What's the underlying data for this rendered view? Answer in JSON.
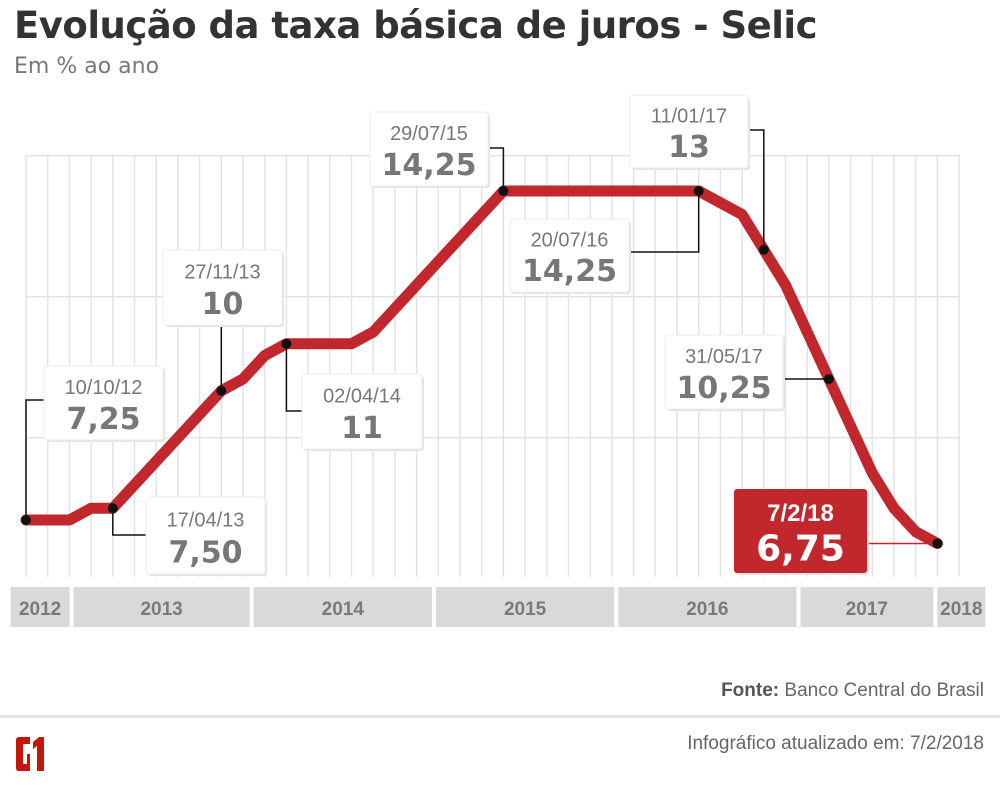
{
  "header": {
    "title": "Evolução da taxa básica de juros - Selic",
    "subtitle": "Em % ao ano"
  },
  "chart_data": {
    "type": "line",
    "title": "Evolução da taxa básica de juros - Selic",
    "ylabel": "Em % ao ano",
    "ylim": [
      6,
      15
    ],
    "y_gridlines": [
      6,
      9,
      12,
      15
    ],
    "grid": true,
    "x_description": "Copom meetings (one vertical gridline per meeting)",
    "x": [
      0,
      1,
      2,
      3,
      4,
      5,
      6,
      7,
      8,
      9,
      10,
      11,
      12,
      13,
      14,
      15,
      16,
      17,
      18,
      19,
      20,
      21,
      22,
      23,
      24,
      25,
      26,
      27,
      28,
      29,
      30,
      31,
      32,
      33,
      34,
      35,
      36,
      37,
      38,
      39,
      40,
      41,
      42
    ],
    "series": [
      {
        "values": [
          7.25,
          7.25,
          7.25,
          7.5,
          7.5,
          8,
          8.5,
          9,
          9.5,
          10,
          10.25,
          10.75,
          11,
          11,
          11,
          11,
          11.25,
          11.75,
          12.25,
          12.75,
          13.25,
          13.75,
          14.25,
          14.25,
          14.25,
          14.25,
          14.25,
          14.25,
          14.25,
          14.25,
          14.25,
          14.25,
          14,
          13.75,
          13,
          12.25,
          11.25,
          10.25,
          9.25,
          8.25,
          7.5,
          7,
          6.75
        ]
      }
    ],
    "x_years": [
      {
        "label": "2012",
        "from": -0.8,
        "to": 2.1
      },
      {
        "label": "2013",
        "from": 2.1,
        "to": 10.4
      },
      {
        "label": "2014",
        "from": 10.4,
        "to": 18.8
      },
      {
        "label": "2015",
        "from": 18.8,
        "to": 27.2
      },
      {
        "label": "2016",
        "from": 27.2,
        "to": 35.6
      },
      {
        "label": "2017",
        "from": 35.6,
        "to": 41.9
      },
      {
        "label": "2018",
        "from": 41.9,
        "to": 44.3
      }
    ],
    "annotations": [
      {
        "date": "10/10/12",
        "value": "7,25",
        "x": 0,
        "y": 7.25
      },
      {
        "date": "17/04/13",
        "value": "7,50",
        "x": 4,
        "y": 7.5
      },
      {
        "date": "27/11/13",
        "value": "10",
        "x": 9,
        "y": 10
      },
      {
        "date": "02/04/14",
        "value": "11",
        "x": 12,
        "y": 11
      },
      {
        "date": "29/07/15",
        "value": "14,25",
        "x": 22,
        "y": 14.25
      },
      {
        "date": "20/07/16",
        "value": "14,25",
        "x": 31,
        "y": 14.25
      },
      {
        "date": "11/01/17",
        "value": "13",
        "x": 34,
        "y": 13
      },
      {
        "date": "31/05/17",
        "value": "10,25",
        "x": 37,
        "y": 10.25
      },
      {
        "date": "7/2/18",
        "value": "6,75",
        "x": 42,
        "y": 6.75,
        "highlight": true
      }
    ],
    "colors": {
      "line": "#c1272d",
      "grid": "#e3e3e3",
      "axis_band": "#d9d9d9",
      "highlight_box": "#c1272d"
    }
  },
  "footer": {
    "source_label": "Fonte:",
    "source": "Banco Central do Brasil",
    "updated": "Infográfico atualizado em: 7/2/2018",
    "logo": "G1"
  }
}
